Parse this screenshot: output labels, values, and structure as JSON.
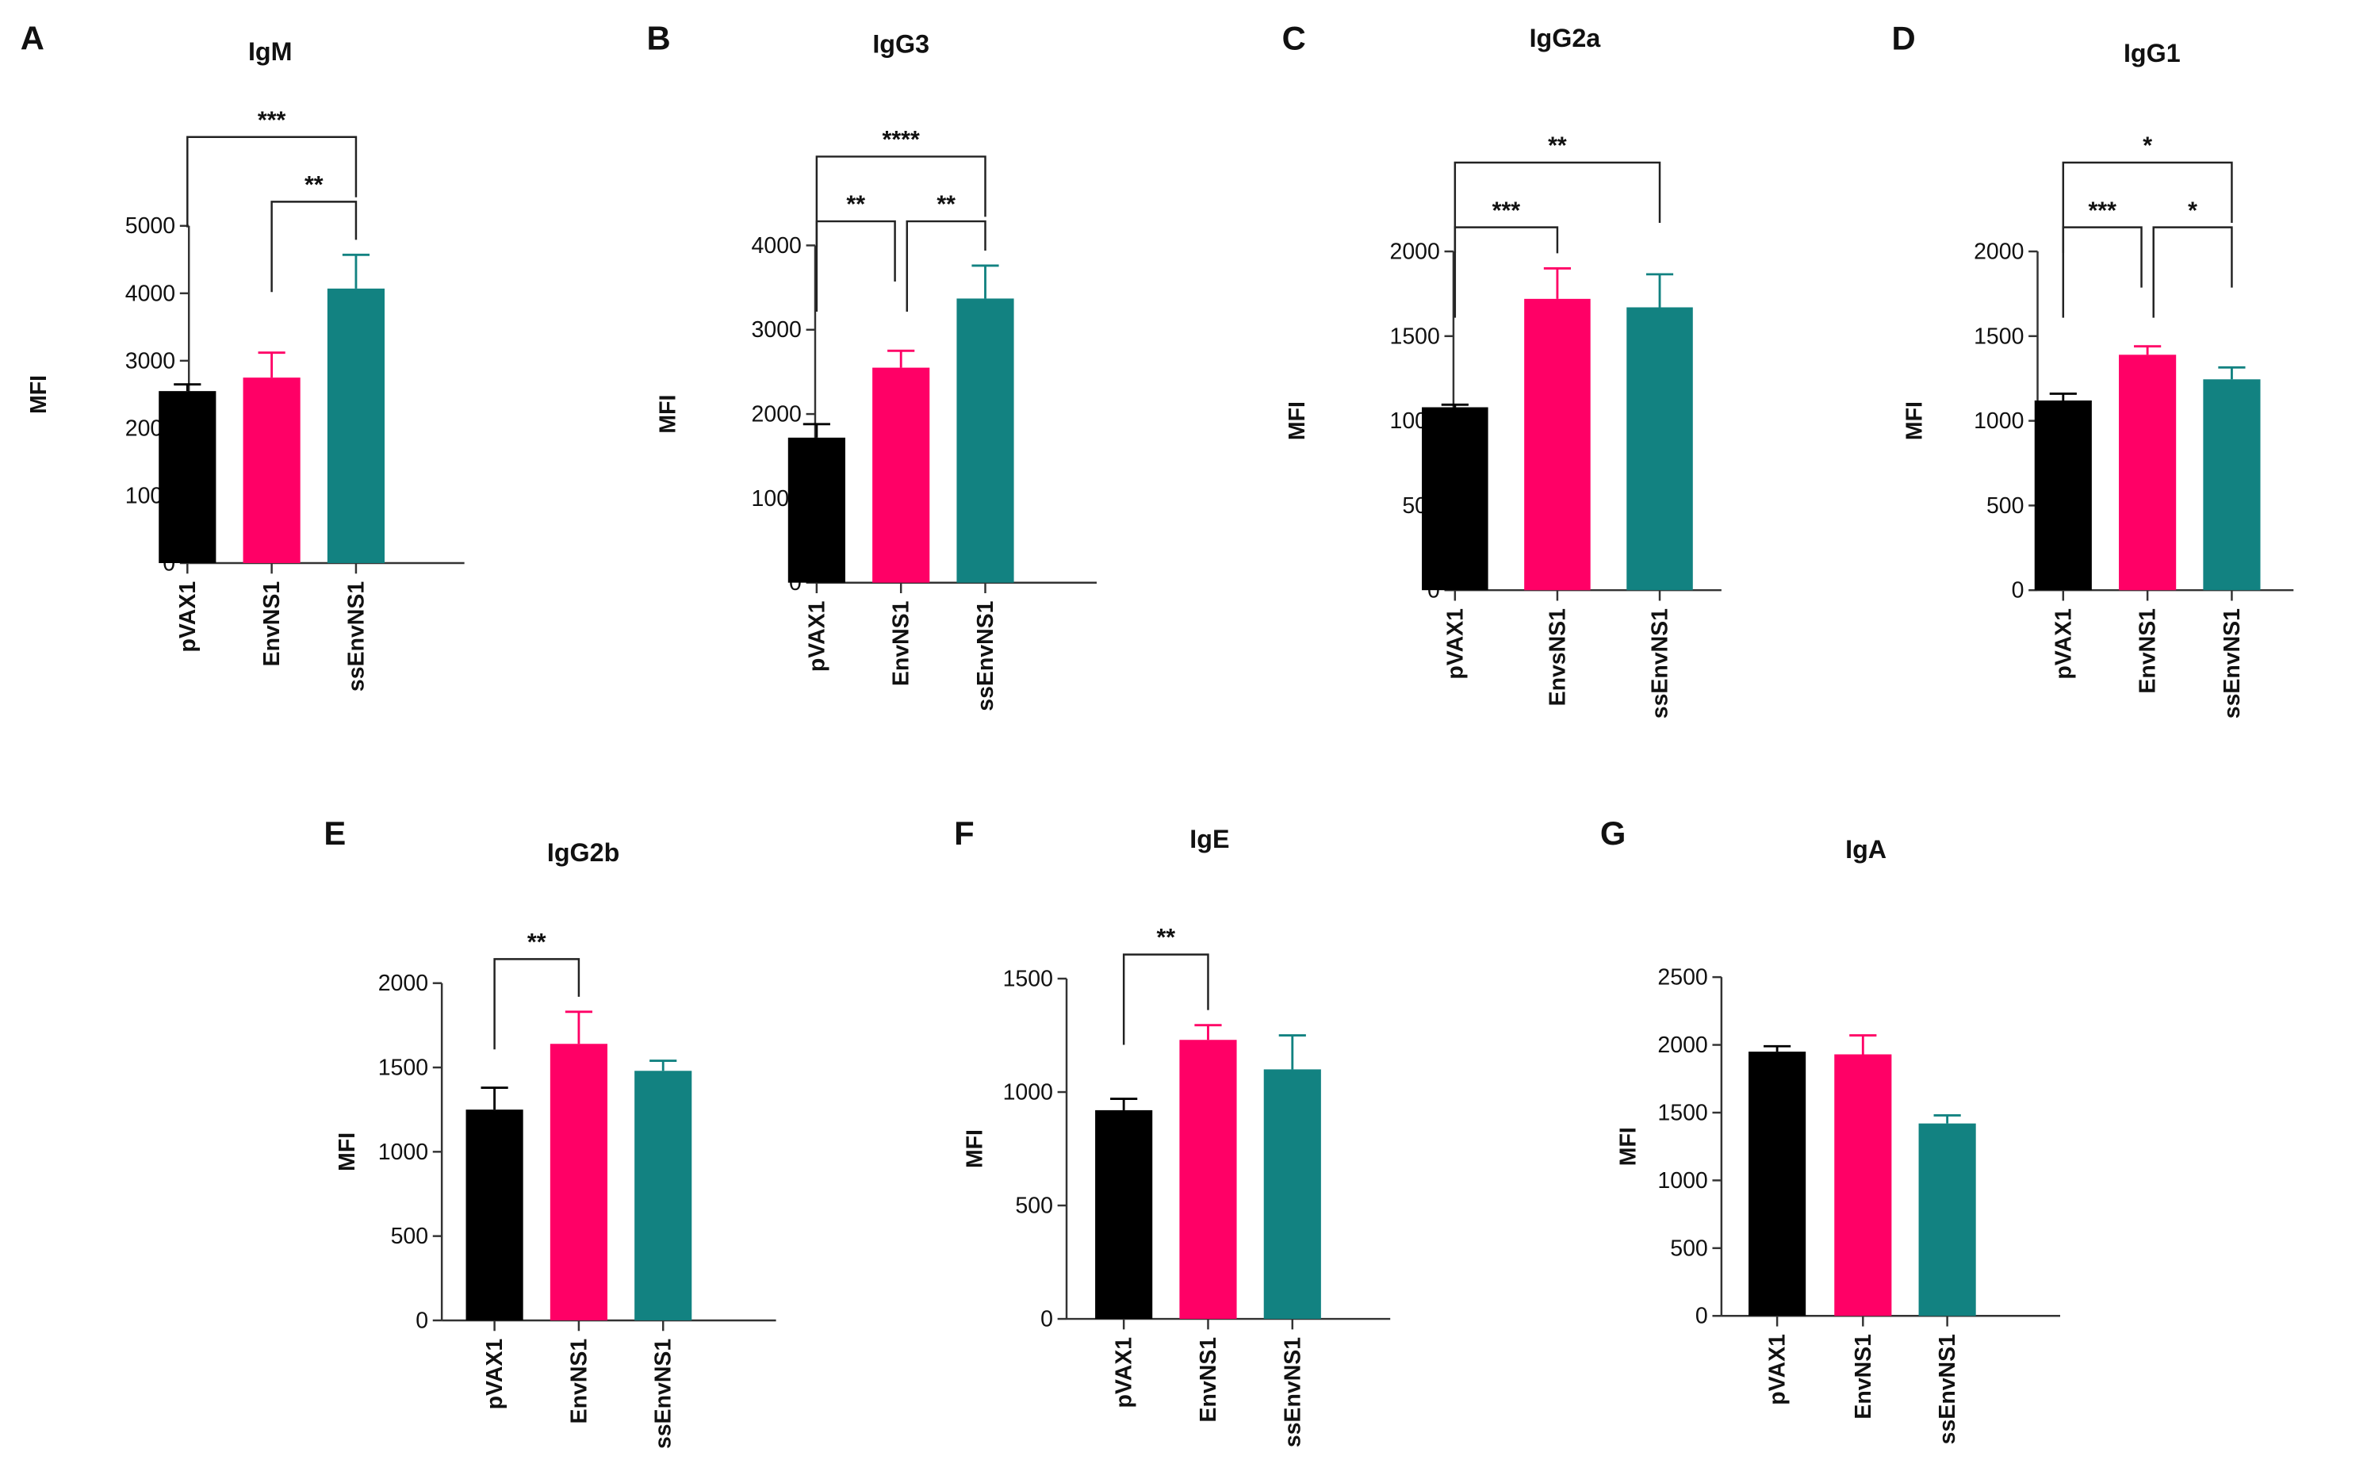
{
  "chart_data": [
    {
      "type": "bar",
      "letter": "A",
      "title": "IgM",
      "ylabel": "MFI",
      "ylim": [
        0,
        5000
      ],
      "yticks": [
        0,
        1000,
        2000,
        3000,
        4000,
        5000
      ],
      "categories": [
        "pVAX1",
        "EnvNS1",
        "ssEnvNS1"
      ],
      "values": [
        2550,
        2750,
        4070
      ],
      "errors": [
        100,
        370,
        500
      ],
      "brackets": [
        {
          "from": 1,
          "to": 2,
          "label": "**",
          "level": 0
        },
        {
          "from": 0,
          "to": 2,
          "label": "***",
          "level": 1
        }
      ]
    },
    {
      "type": "bar",
      "letter": "B",
      "title": "IgG3",
      "ylabel": "MFI",
      "ylim": [
        0,
        4000
      ],
      "yticks": [
        0,
        1000,
        2000,
        3000,
        4000
      ],
      "categories": [
        "pVAX1",
        "EnvNS1",
        "ssEnvNS1"
      ],
      "values": [
        1720,
        2550,
        3370
      ],
      "errors": [
        160,
        200,
        390
      ],
      "brackets": [
        {
          "from": 0,
          "to": 1,
          "label": "**",
          "level": 0
        },
        {
          "from": 1,
          "to": 2,
          "label": "**",
          "level": 0
        },
        {
          "from": 0,
          "to": 2,
          "label": "****",
          "level": 1
        }
      ]
    },
    {
      "type": "bar",
      "letter": "C",
      "title": "IgG2a",
      "ylabel": "MFI",
      "ylim": [
        0,
        2000
      ],
      "yticks": [
        0,
        500,
        1000,
        1500,
        2000
      ],
      "categories": [
        "pVAX1",
        "EnvsNS1",
        "ssEnvNS1"
      ],
      "values": [
        1080,
        1720,
        1670
      ],
      "errors": [
        15,
        180,
        195
      ],
      "brackets": [
        {
          "from": 0,
          "to": 1,
          "label": "***",
          "level": 0
        },
        {
          "from": 0,
          "to": 2,
          "label": "**",
          "level": 1
        }
      ]
    },
    {
      "type": "bar",
      "letter": "D",
      "title": "IgG1",
      "ylabel": "MFI",
      "ylim": [
        0,
        2000
      ],
      "yticks": [
        0,
        500,
        1000,
        1500,
        2000
      ],
      "categories": [
        "pVAX1",
        "EnvNS1",
        "ssEnvNS1"
      ],
      "values": [
        1120,
        1390,
        1245
      ],
      "errors": [
        40,
        50,
        70
      ],
      "brackets": [
        {
          "from": 0,
          "to": 1,
          "label": "***",
          "level": 0
        },
        {
          "from": 1,
          "to": 2,
          "label": "*",
          "level": 0
        },
        {
          "from": 0,
          "to": 2,
          "label": "*",
          "level": 1
        }
      ]
    },
    {
      "type": "bar",
      "letter": "E",
      "title": "IgG2b",
      "ylabel": "MFI",
      "ylim": [
        0,
        2000
      ],
      "yticks": [
        0,
        500,
        1000,
        1500,
        2000
      ],
      "categories": [
        "pVAX1",
        "EnvNS1",
        "ssEnvNS1"
      ],
      "values": [
        1250,
        1640,
        1480
      ],
      "errors": [
        130,
        190,
        60
      ],
      "brackets": [
        {
          "from": 0,
          "to": 1,
          "label": "**",
          "level": 0
        }
      ]
    },
    {
      "type": "bar",
      "letter": "F",
      "title": "IgE",
      "ylabel": "MFI",
      "ylim": [
        0,
        1500
      ],
      "yticks": [
        0,
        500,
        1000,
        1500
      ],
      "categories": [
        "pVAX1",
        "EnvNS1",
        "ssEnvNS1"
      ],
      "values": [
        920,
        1230,
        1100
      ],
      "errors": [
        50,
        65,
        150
      ],
      "brackets": [
        {
          "from": 0,
          "to": 1,
          "label": "**",
          "level": 0
        }
      ]
    },
    {
      "type": "bar",
      "letter": "G",
      "title": "IgA",
      "ylabel": "MFI",
      "ylim": [
        0,
        2500
      ],
      "yticks": [
        0,
        500,
        1000,
        1500,
        2000,
        2500
      ],
      "categories": [
        "pVAX1",
        "EnvNS1",
        "ssEnvNS1"
      ],
      "values": [
        1950,
        1930,
        1420
      ],
      "errors": [
        40,
        140,
        60
      ],
      "brackets": []
    }
  ],
  "colors": {
    "pVAX1": "#000000",
    "EnvNS1": "#ff0066",
    "ssEnvNS1": "#128281"
  }
}
